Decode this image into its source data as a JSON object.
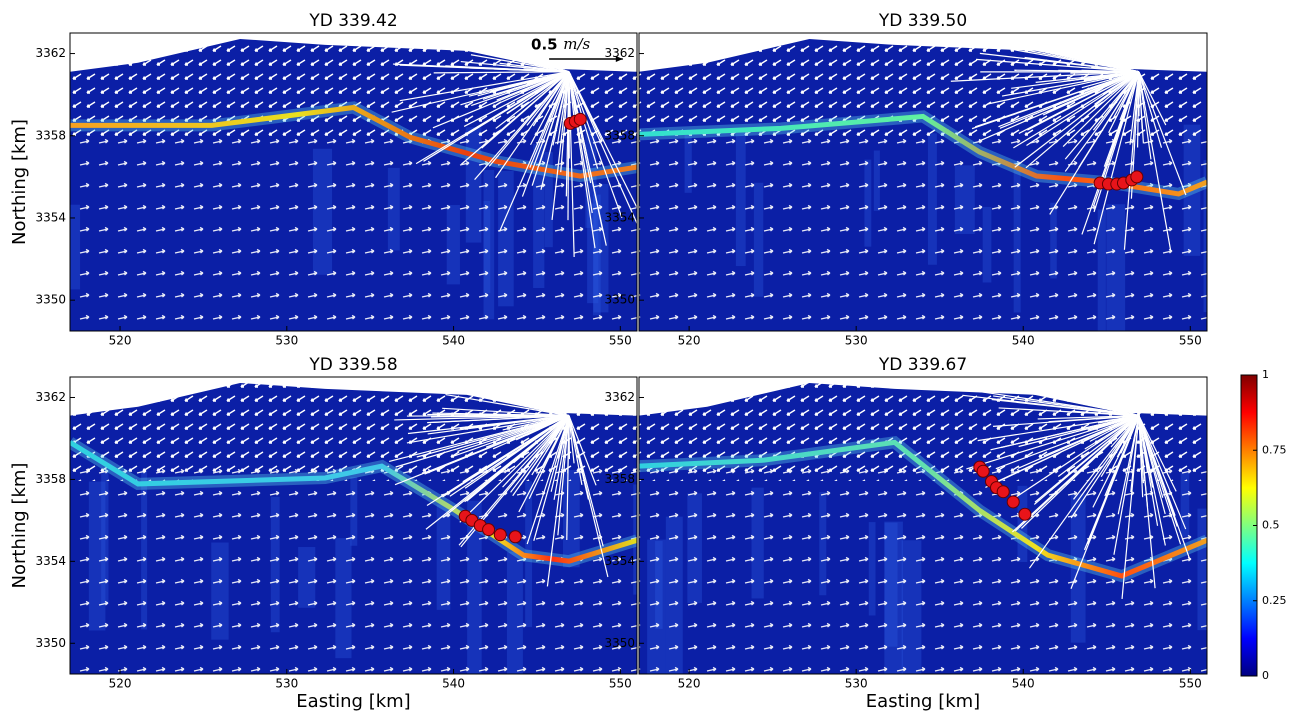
{
  "chart_data": [
    {
      "type": "scatter",
      "title": "YD 339.42",
      "ylabel": "Northing [km]",
      "scale_value": 0.5,
      "scale_unit": "m/s",
      "x": [
        547.0,
        547.3,
        547.6
      ],
      "y": [
        3358.6,
        3358.7,
        3358.8
      ],
      "color": "#e8141a",
      "xlim": [
        517,
        551
      ],
      "ylim": [
        3348.5,
        3363
      ],
      "xticks": [
        520,
        530,
        540,
        550
      ],
      "yticks": [
        3350,
        3354,
        3358,
        3362
      ]
    },
    {
      "type": "scatter",
      "title": "YD 339.50",
      "x": [
        544.6,
        545.1,
        545.6,
        546.0,
        546.5,
        546.8
      ],
      "y": [
        3355.7,
        3355.65,
        3355.65,
        3355.7,
        3355.85,
        3356.0
      ],
      "color": "#e8141a",
      "xlim": [
        517,
        551
      ],
      "ylim": [
        3348.5,
        3363
      ],
      "xticks": [
        520,
        530,
        540,
        550
      ],
      "yticks": [
        3350,
        3354,
        3358,
        3362
      ]
    },
    {
      "type": "scatter",
      "title": "YD 339.58",
      "ylabel": "Northing [km]",
      "xlabel": "Easting [km]",
      "x": [
        540.7,
        541.1,
        541.6,
        542.1,
        542.8,
        543.7
      ],
      "y": [
        3356.2,
        3356.0,
        3355.75,
        3355.55,
        3355.3,
        3355.2
      ],
      "color": "#e8141a",
      "xlim": [
        517,
        551
      ],
      "ylim": [
        3348.5,
        3363
      ],
      "xticks": [
        520,
        530,
        540,
        550
      ],
      "yticks": [
        3350,
        3354,
        3358,
        3362
      ]
    },
    {
      "type": "scatter",
      "title": "YD 339.67",
      "xlabel": "Easting [km]",
      "x": [
        537.4,
        537.6,
        538.1,
        538.4,
        538.8,
        539.4,
        540.1
      ],
      "y": [
        3358.6,
        3358.4,
        3357.9,
        3357.6,
        3357.4,
        3356.9,
        3356.3
      ],
      "color": "#e8141a",
      "xlim": [
        517,
        551
      ],
      "ylim": [
        3348.5,
        3363
      ],
      "xticks": [
        520,
        530,
        540,
        550
      ],
      "yticks": [
        3350,
        3354,
        3358,
        3362
      ]
    },
    {
      "type": "colorbar",
      "ylim": [
        0,
        1
      ],
      "yticks": [
        0,
        0.25,
        0.5,
        0.75,
        1
      ]
    }
  ]
}
